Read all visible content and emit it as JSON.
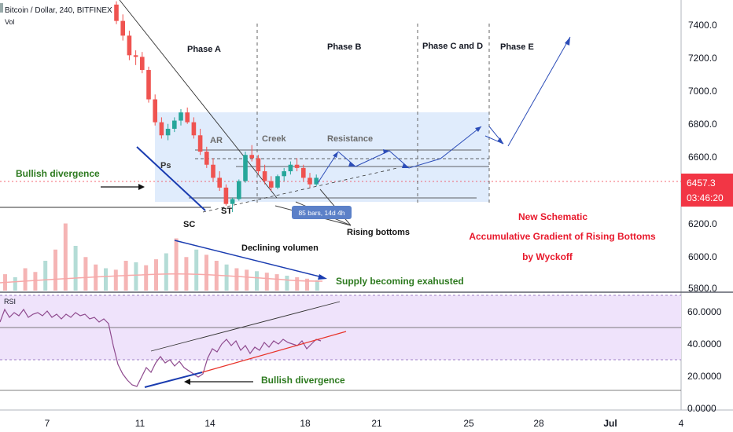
{
  "header": {
    "symbol_title": "Bitcoin / Dollar, 240, BITFINEX",
    "volume_label": "Vol"
  },
  "price_axis": {
    "ticks": [
      "7400.0",
      "7200.0",
      "7000.0",
      "6800.0",
      "6600.0",
      "6457.3",
      "6200.0",
      "6000.0",
      "5800.0"
    ],
    "current_price": "6457.3",
    "countdown": "03:46:20",
    "colors": {
      "price_badge": "#f23645",
      "axis_text": "#131722"
    }
  },
  "rsi_axis": {
    "ticks": [
      "60.0000",
      "40.0000",
      "20.0000",
      "0.0000"
    ],
    "label": "RSI"
  },
  "time_axis": {
    "ticks": [
      "7",
      "11",
      "14",
      "18",
      "21",
      "25",
      "28",
      "Jul",
      "4"
    ]
  },
  "annotations": {
    "phase_a": "Phase A",
    "phase_b": "Phase B",
    "phase_cd": "Phase C and D",
    "phase_e": "Phase E",
    "ar": "AR",
    "creek": "Creek",
    "resistance": "Resistance",
    "ps": "Ps",
    "st": "ST",
    "sc": "SC",
    "bullish_divergence_price": "Bullish divergence",
    "bars_badge": "85 bars, 14d 4h",
    "rising_bottoms": "Rising bottoms",
    "declining_volume": "Declining volumen",
    "supply_exhausted": "Supply becoming exahusted",
    "bullish_divergence_rsi": "Bullish divergence",
    "schematic_line1": "New Schematic",
    "schematic_line2": "Accumulative Gradient of Rising Bottoms",
    "schematic_line3": "by  Wyckoff"
  },
  "chart_data": {
    "type": "candlestick",
    "title": "Bitcoin / Dollar, 240, BITFINEX",
    "ylim": [
      5760,
      7500
    ],
    "rsi_ylim": [
      0,
      72
    ],
    "rsi_levels": [
      30,
      70
    ],
    "last_price": 6457.3,
    "candles_ohlc": [
      [
        7520,
        7540,
        7400,
        7420
      ],
      [
        7420,
        7460,
        7300,
        7330
      ],
      [
        7330,
        7360,
        7180,
        7210
      ],
      [
        7210,
        7240,
        7150,
        7200
      ],
      [
        7200,
        7230,
        7100,
        7120
      ],
      [
        7120,
        7140,
        6920,
        6940
      ],
      [
        6940,
        6970,
        6780,
        6800
      ],
      [
        6800,
        6830,
        6700,
        6720
      ],
      [
        6720,
        6790,
        6690,
        6760
      ],
      [
        6760,
        6830,
        6740,
        6810
      ],
      [
        6810,
        6880,
        6780,
        6860
      ],
      [
        6860,
        6890,
        6790,
        6800
      ],
      [
        6800,
        6830,
        6700,
        6720
      ],
      [
        6720,
        6760,
        6600,
        6620
      ],
      [
        6620,
        6650,
        6520,
        6540
      ],
      [
        6540,
        6580,
        6440,
        6460
      ],
      [
        6460,
        6500,
        6380,
        6400
      ],
      [
        6400,
        6420,
        6290,
        6300
      ],
      [
        6300,
        6340,
        6250,
        6330
      ],
      [
        6330,
        6450,
        6320,
        6440
      ],
      [
        6440,
        6620,
        6430,
        6600
      ],
      [
        6600,
        6660,
        6560,
        6580
      ],
      [
        6580,
        6600,
        6480,
        6500
      ],
      [
        6500,
        6540,
        6420,
        6440
      ],
      [
        6440,
        6470,
        6380,
        6400
      ],
      [
        6400,
        6480,
        6390,
        6470
      ],
      [
        6470,
        6520,
        6440,
        6500
      ],
      [
        6500,
        6560,
        6480,
        6540
      ],
      [
        6540,
        6580,
        6500,
        6520
      ],
      [
        6520,
        6540,
        6440,
        6460
      ],
      [
        6460,
        6490,
        6400,
        6420
      ],
      [
        6420,
        6480,
        6410,
        6460
      ]
    ],
    "volume": [
      22,
      18,
      30,
      25,
      40,
      55,
      90,
      60,
      45,
      35,
      30,
      28,
      40,
      38,
      34,
      42,
      50,
      70,
      45,
      55,
      48,
      40,
      35,
      30,
      28,
      26,
      24,
      22,
      20,
      18,
      16,
      14
    ],
    "rsi": [
      [
        0,
        55
      ],
      [
        6,
        63
      ],
      [
        12,
        58
      ],
      [
        18,
        61
      ],
      [
        24,
        59
      ],
      [
        30,
        63
      ],
      [
        36,
        58
      ],
      [
        42,
        60
      ],
      [
        48,
        61
      ],
      [
        54,
        59
      ],
      [
        60,
        62
      ],
      [
        66,
        58
      ],
      [
        72,
        60
      ],
      [
        78,
        57
      ],
      [
        84,
        60
      ],
      [
        90,
        58
      ],
      [
        96,
        61
      ],
      [
        102,
        59
      ],
      [
        108,
        60
      ],
      [
        114,
        57
      ],
      [
        120,
        58
      ],
      [
        126,
        55
      ],
      [
        132,
        57
      ],
      [
        138,
        54
      ],
      [
        144,
        40
      ],
      [
        150,
        28
      ],
      [
        156,
        22
      ],
      [
        162,
        18
      ],
      [
        168,
        15
      ],
      [
        174,
        14
      ],
      [
        180,
        20
      ],
      [
        186,
        26
      ],
      [
        192,
        23
      ],
      [
        198,
        29
      ],
      [
        204,
        33
      ],
      [
        210,
        29
      ],
      [
        216,
        31
      ],
      [
        222,
        27
      ],
      [
        228,
        30
      ],
      [
        234,
        26
      ],
      [
        240,
        24
      ],
      [
        246,
        22
      ],
      [
        252,
        20
      ],
      [
        258,
        22
      ],
      [
        264,
        32
      ],
      [
        270,
        38
      ],
      [
        276,
        36
      ],
      [
        282,
        41
      ],
      [
        288,
        44
      ],
      [
        294,
        40
      ],
      [
        300,
        43
      ],
      [
        306,
        37
      ],
      [
        312,
        40
      ],
      [
        318,
        35
      ],
      [
        324,
        39
      ],
      [
        330,
        37
      ],
      [
        336,
        42
      ],
      [
        342,
        39
      ],
      [
        348,
        43
      ],
      [
        354,
        41
      ],
      [
        360,
        44
      ],
      [
        366,
        42
      ],
      [
        372,
        41
      ],
      [
        378,
        40
      ],
      [
        384,
        43
      ],
      [
        390,
        38
      ],
      [
        396,
        41
      ],
      [
        402,
        44
      ],
      [
        408,
        43
      ]
    ]
  }
}
